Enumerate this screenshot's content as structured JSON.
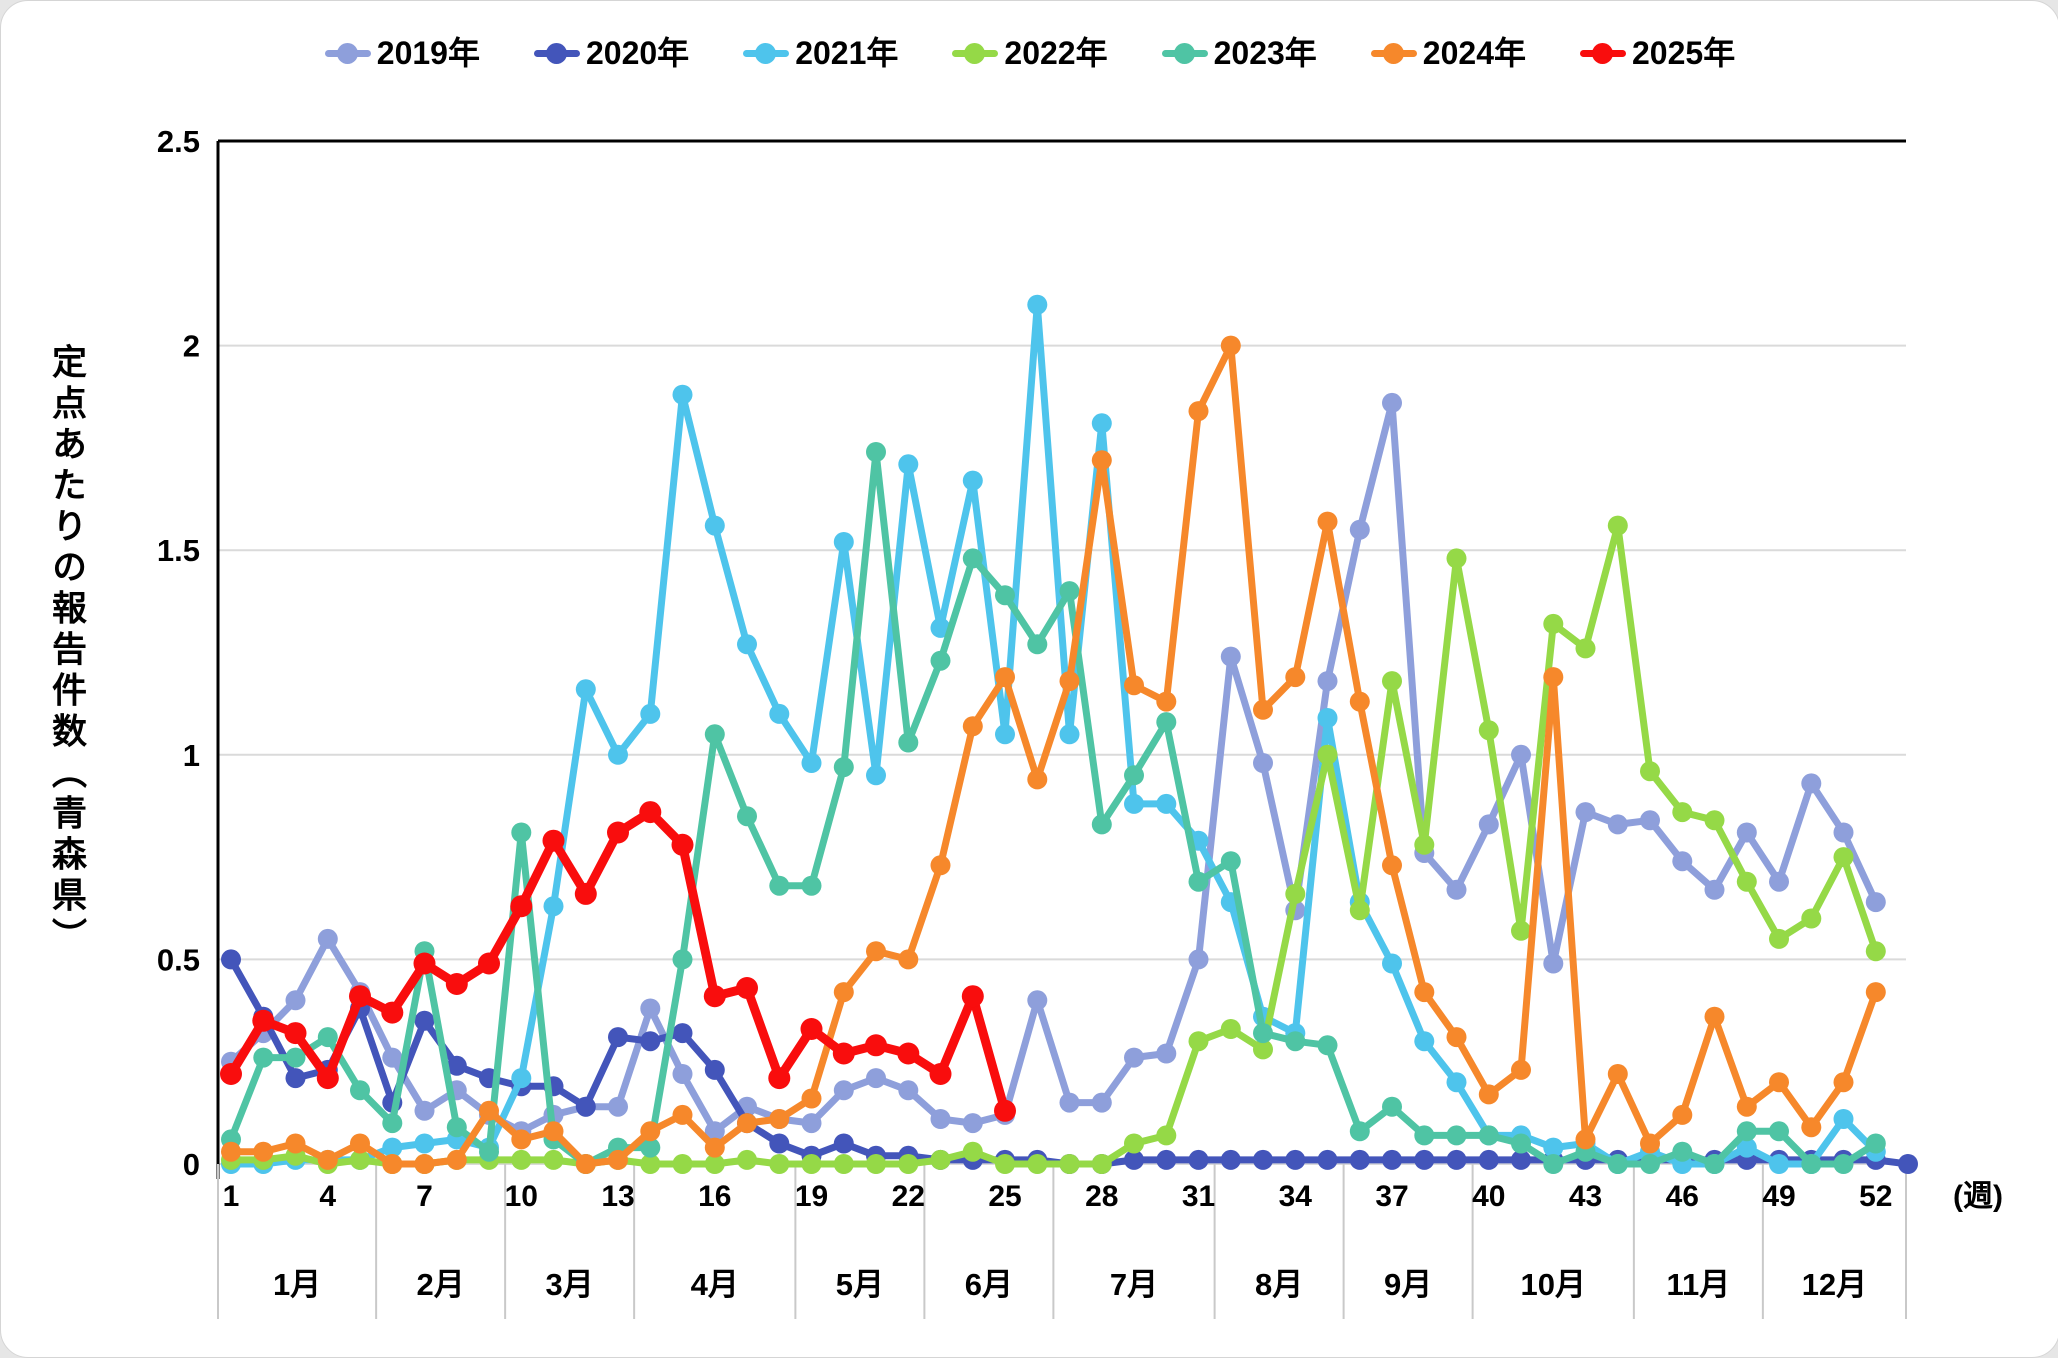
{
  "y_axis": {
    "title": "定点あたりの報告件数（青森県）",
    "ticks": [
      "0",
      "0.5",
      "1",
      "1.5",
      "2",
      "2.5"
    ],
    "tick_values": [
      0,
      0.5,
      1,
      1.5,
      2,
      2.5
    ],
    "max": 2.5,
    "grid_color": "#DADADA",
    "axis_color": "#000000"
  },
  "x_axis": {
    "unit_label": "(週)",
    "week_ticks": [
      1,
      4,
      7,
      10,
      13,
      16,
      19,
      22,
      25,
      28,
      31,
      34,
      37,
      40,
      43,
      46,
      49,
      52
    ],
    "months": [
      {
        "label": "1月",
        "start": 1,
        "end": 5
      },
      {
        "label": "2月",
        "start": 6,
        "end": 9
      },
      {
        "label": "3月",
        "start": 10,
        "end": 13
      },
      {
        "label": "4月",
        "start": 14,
        "end": 18
      },
      {
        "label": "5月",
        "start": 19,
        "end": 22
      },
      {
        "label": "6月",
        "start": 23,
        "end": 26
      },
      {
        "label": "7月",
        "start": 27,
        "end": 31
      },
      {
        "label": "8月",
        "start": 32,
        "end": 35
      },
      {
        "label": "9月",
        "start": 36,
        "end": 39
      },
      {
        "label": "10月",
        "start": 40,
        "end": 44
      },
      {
        "label": "11月",
        "start": 45,
        "end": 48
      },
      {
        "label": "12月",
        "start": 49,
        "end": 53
      }
    ]
  },
  "chart_data": {
    "type": "line",
    "x_unit": "week",
    "weeks_max": 53,
    "ylim": [
      0,
      2.5
    ],
    "legend_position": "top",
    "grid": true,
    "series": [
      {
        "name": "2019年",
        "color": "#8E9FDB",
        "start_week": 1,
        "values": [
          0.25,
          0.32,
          0.4,
          0.55,
          0.42,
          0.26,
          0.13,
          0.18,
          0.12,
          0.08,
          0.12,
          0.14,
          0.14,
          0.38,
          0.22,
          0.08,
          0.14,
          0.11,
          0.1,
          0.18,
          0.21,
          0.18,
          0.11,
          0.1,
          0.12,
          0.4,
          0.15,
          0.15,
          0.26,
          0.27,
          0.5,
          1.24,
          0.98,
          0.62,
          1.18,
          1.55,
          1.86,
          0.76,
          0.67,
          0.83,
          1.0,
          0.49,
          0.86,
          0.83,
          0.84,
          0.74,
          0.67,
          0.81,
          0.69,
          0.93,
          0.81,
          0.64
        ]
      },
      {
        "name": "2020年",
        "color": "#4355BA",
        "start_week": 1,
        "values": [
          0.5,
          0.36,
          0.21,
          0.23,
          0.38,
          0.15,
          0.35,
          0.24,
          0.21,
          0.19,
          0.19,
          0.14,
          0.31,
          0.3,
          0.32,
          0.23,
          0.1,
          0.05,
          0.02,
          0.05,
          0.02,
          0.02,
          0.01,
          0.01,
          0.01,
          0.01,
          0.0,
          0.0,
          0.01,
          0.01,
          0.01,
          0.01,
          0.01,
          0.01,
          0.01,
          0.01,
          0.01,
          0.01,
          0.01,
          0.01,
          0.01,
          0.01,
          0.01,
          0.01,
          0.01,
          0.01,
          0.01,
          0.01,
          0.01,
          0.01,
          0.01,
          0.01,
          0.0
        ]
      },
      {
        "name": "2021年",
        "color": "#4EC4EC",
        "start_week": 1,
        "values": [
          0.0,
          0.0,
          0.01,
          0.01,
          0.01,
          0.04,
          0.05,
          0.06,
          0.04,
          0.21,
          0.63,
          1.16,
          1.0,
          1.1,
          1.88,
          1.56,
          1.27,
          1.1,
          0.98,
          1.52,
          0.95,
          1.71,
          1.31,
          1.67,
          1.05,
          2.1,
          1.05,
          1.81,
          0.88,
          0.88,
          0.79,
          0.64,
          0.36,
          0.32,
          1.09,
          0.64,
          0.49,
          0.3,
          0.2,
          0.07,
          0.07,
          0.04,
          0.05,
          0.0,
          0.03,
          0.0,
          0.0,
          0.04,
          0.0,
          0.0,
          0.11,
          0.03
        ]
      },
      {
        "name": "2022年",
        "color": "#95D947",
        "start_week": 1,
        "values": [
          0.01,
          0.01,
          0.02,
          0.0,
          0.01,
          0.0,
          0.0,
          0.01,
          0.01,
          0.01,
          0.01,
          0.0,
          0.01,
          0.0,
          0.0,
          0.0,
          0.01,
          0.0,
          0.0,
          0.0,
          0.0,
          0.0,
          0.01,
          0.03,
          0.0,
          0.0,
          0.0,
          0.0,
          0.05,
          0.07,
          0.3,
          0.33,
          0.28,
          0.66,
          1.0,
          0.62,
          1.18,
          0.78,
          1.48,
          1.06,
          0.57,
          1.32,
          1.26,
          1.56,
          0.96,
          0.86,
          0.84,
          0.69,
          0.55,
          0.6,
          0.75,
          0.52
        ]
      },
      {
        "name": "2023年",
        "color": "#4FC4A4",
        "start_week": 1,
        "values": [
          0.06,
          0.26,
          0.26,
          0.31,
          0.18,
          0.1,
          0.52,
          0.09,
          0.03,
          0.81,
          0.06,
          0.0,
          0.04,
          0.04,
          0.5,
          1.05,
          0.85,
          0.68,
          0.68,
          0.97,
          1.74,
          1.03,
          1.23,
          1.48,
          1.39,
          1.27,
          1.4,
          0.83,
          0.95,
          1.08,
          0.69,
          0.74,
          0.32,
          0.3,
          0.29,
          0.08,
          0.14,
          0.07,
          0.07,
          0.07,
          0.05,
          0.0,
          0.03,
          0.0,
          0.0,
          0.03,
          0.0,
          0.08,
          0.08,
          0.0,
          0.0,
          0.05
        ]
      },
      {
        "name": "2024年",
        "color": "#F6882B",
        "start_week": 1,
        "values": [
          0.03,
          0.03,
          0.05,
          0.01,
          0.05,
          0.0,
          0.0,
          0.01,
          0.13,
          0.06,
          0.08,
          0.0,
          0.01,
          0.08,
          0.12,
          0.04,
          0.1,
          0.11,
          0.16,
          0.42,
          0.52,
          0.5,
          0.73,
          1.07,
          1.19,
          0.94,
          1.18,
          1.72,
          1.17,
          1.13,
          1.84,
          2.0,
          1.11,
          1.19,
          1.57,
          1.13,
          0.73,
          0.42,
          0.31,
          0.17,
          0.23,
          1.19,
          0.06,
          0.22,
          0.05,
          0.12,
          0.36,
          0.14,
          0.2,
          0.09,
          0.2,
          0.42
        ]
      },
      {
        "name": "2025年",
        "color": "#F90D0D",
        "start_week": 1,
        "values": [
          0.22,
          0.35,
          0.32,
          0.21,
          0.41,
          0.37,
          0.49,
          0.44,
          0.49,
          0.63,
          0.79,
          0.66,
          0.81,
          0.86,
          0.78,
          0.41,
          0.43,
          0.21,
          0.33,
          0.27,
          0.29,
          0.27,
          0.22,
          0.41,
          0.13
        ]
      }
    ]
  }
}
